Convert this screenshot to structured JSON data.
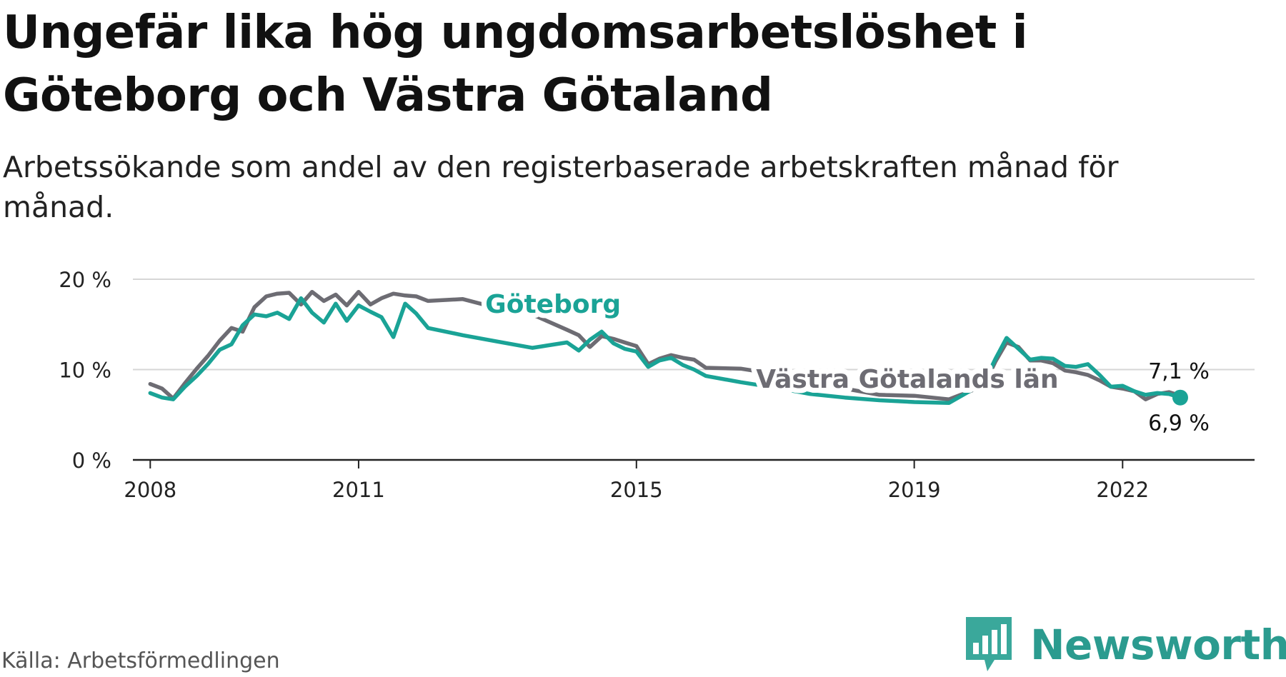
{
  "title": "Ungefär lika hög ungdomsarbetslöshet i Göteborg och Västra Götaland",
  "subtitle": "Arbetssökande som andel av den registerbaserade arbetskraften månad för månad.",
  "source": "Källa: Arbetsförmedlingen",
  "brand": "Newsworthy",
  "colors": {
    "goteborg": "#1aa396",
    "vastra": "#6d6c73",
    "grid": "#d6d6d6",
    "axis": "#222222",
    "brand": "#2b9b8f"
  },
  "chart_data": {
    "type": "line",
    "ylim": [
      0,
      20
    ],
    "xlim": [
      2007.75,
      2023.9
    ],
    "y_ticks": [
      0,
      10,
      20
    ],
    "y_tick_labels": [
      "0 %",
      "10 %",
      "20 %"
    ],
    "x_ticks": [
      2008,
      2011,
      2015,
      2019,
      2022
    ],
    "x_tick_labels": [
      "2008",
      "2011",
      "2015",
      "2019",
      "2022"
    ],
    "grid": true,
    "series": [
      {
        "name": "Västra Götalands län",
        "end_label": "7,1 %",
        "x": [
          2008.0,
          2008.17,
          2008.33,
          2008.5,
          2008.67,
          2008.83,
          2009.0,
          2009.17,
          2009.33,
          2009.5,
          2009.67,
          2009.83,
          2010.0,
          2010.17,
          2010.33,
          2010.5,
          2010.67,
          2010.83,
          2011.0,
          2011.17,
          2011.33,
          2011.5,
          2011.67,
          2011.83,
          2012.0,
          2012.5,
          2013.0,
          2013.5,
          2014.0,
          2014.17,
          2014.33,
          2014.5,
          2014.67,
          2014.83,
          2015.0,
          2015.17,
          2015.33,
          2015.5,
          2015.67,
          2015.83,
          2016.0,
          2016.5,
          2017.0,
          2017.5,
          2018.0,
          2018.5,
          2019.0,
          2019.5,
          2020.0,
          2020.17,
          2020.33,
          2020.5,
          2020.67,
          2020.83,
          2021.0,
          2021.17,
          2021.33,
          2021.5,
          2021.67,
          2021.83,
          2022.0,
          2022.17,
          2022.33,
          2022.5,
          2022.67,
          2022.83
        ],
        "y": [
          8.4,
          7.9,
          6.8,
          8.5,
          10.1,
          11.5,
          13.2,
          14.6,
          14.2,
          16.9,
          18.1,
          18.4,
          18.5,
          17.2,
          18.6,
          17.6,
          18.3,
          17.1,
          18.6,
          17.2,
          17.9,
          18.4,
          18.2,
          18.1,
          17.6,
          17.8,
          16.8,
          16.1,
          14.4,
          13.8,
          12.5,
          13.7,
          13.4,
          13.0,
          12.6,
          10.6,
          11.2,
          11.6,
          11.3,
          11.1,
          10.2,
          10.1,
          9.5,
          9.0,
          7.9,
          7.2,
          7.1,
          6.7,
          8.2,
          10.9,
          13.0,
          12.5,
          11.0,
          11.0,
          10.7,
          9.9,
          9.7,
          9.4,
          8.8,
          8.1,
          7.9,
          7.6,
          6.7,
          7.3,
          7.5,
          7.1
        ]
      },
      {
        "name": "Göteborg",
        "end_label": "6,9 %",
        "x": [
          2008.0,
          2008.17,
          2008.33,
          2008.5,
          2008.67,
          2008.83,
          2009.0,
          2009.17,
          2009.33,
          2009.5,
          2009.67,
          2009.83,
          2010.0,
          2010.17,
          2010.33,
          2010.5,
          2010.67,
          2010.83,
          2011.0,
          2011.17,
          2011.33,
          2011.5,
          2011.67,
          2011.83,
          2012.0,
          2012.5,
          2013.0,
          2013.5,
          2014.0,
          2014.17,
          2014.33,
          2014.5,
          2014.67,
          2014.83,
          2015.0,
          2015.17,
          2015.33,
          2015.5,
          2015.67,
          2015.83,
          2016.0,
          2016.5,
          2017.0,
          2017.5,
          2018.0,
          2018.5,
          2019.0,
          2019.5,
          2020.0,
          2020.17,
          2020.33,
          2020.5,
          2020.67,
          2020.83,
          2021.0,
          2021.17,
          2021.33,
          2021.5,
          2021.67,
          2021.83,
          2022.0,
          2022.17,
          2022.33,
          2022.5,
          2022.67,
          2022.83
        ],
        "y": [
          7.4,
          6.9,
          6.7,
          8.1,
          9.3,
          10.6,
          12.2,
          12.8,
          14.9,
          16.1,
          15.9,
          16.3,
          15.6,
          17.9,
          16.3,
          15.2,
          17.3,
          15.4,
          17.1,
          16.4,
          15.8,
          13.6,
          17.3,
          16.2,
          14.6,
          13.8,
          13.1,
          12.4,
          13.0,
          12.1,
          13.3,
          14.2,
          12.9,
          12.3,
          12.0,
          10.3,
          11.0,
          11.3,
          10.5,
          10.0,
          9.3,
          8.6,
          8.0,
          7.3,
          6.9,
          6.6,
          6.4,
          6.3,
          8.5,
          11.2,
          13.5,
          12.3,
          11.1,
          11.3,
          11.2,
          10.4,
          10.3,
          10.6,
          9.4,
          8.1,
          8.2,
          7.6,
          7.2,
          7.4,
          7.3,
          6.9
        ]
      }
    ]
  }
}
